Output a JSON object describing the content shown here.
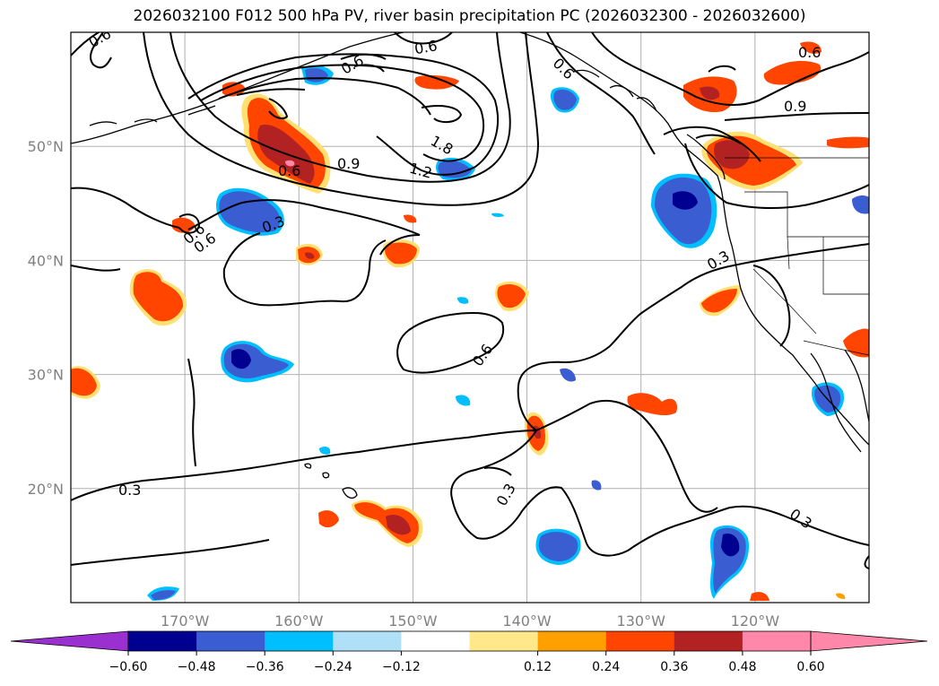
{
  "title": "2026032100 F012 500 hPa PV, river basin precipitation PC (2026032300 - 2026032600)",
  "map": {
    "lon_range": [
      -180,
      -110
    ],
    "lat_range": [
      10,
      60
    ],
    "lon_ticks": [
      -170,
      -160,
      -150,
      -140,
      -130,
      -120
    ],
    "lat_ticks": [
      20,
      30,
      40,
      50
    ],
    "lon_tick_labels": [
      "170°W",
      "160°W",
      "150°W",
      "140°W",
      "130°W",
      "120°W"
    ],
    "lat_tick_labels": [
      "20°N",
      "30°N",
      "40°N",
      "50°N"
    ],
    "grid": true
  },
  "contour_labels": [
    "0.6",
    "0.6",
    "0.6",
    "0.6",
    "0.9",
    "0.9",
    "1.2",
    "1.8",
    "0.6",
    "0.6",
    "0.3",
    "0.3",
    "0.6",
    "0.3",
    "0.3",
    "0.3",
    "0.6",
    "0.6"
  ],
  "colorbar": {
    "ticks": [
      "−0.60",
      "−0.48",
      "−0.36",
      "−0.24",
      "−0.12",
      "0.12",
      "0.24",
      "0.36",
      "0.48",
      "0.60"
    ],
    "colors": {
      "under": "#9b30d0",
      "bins": [
        "#000090",
        "#3a5ed2",
        "#00bfff",
        "#b0e0f8",
        "#ffffff",
        "#ffe88a",
        "#ffa000",
        "#ff4500",
        "#b22222",
        "#ff88aa"
      ],
      "over": "#ff88aa"
    }
  },
  "shading_colors": {
    "pos_light": "#ffe070",
    "pos_mid": "#ff4500",
    "pos_dark": "#b22222",
    "pos_core": "#ff88aa",
    "neg_light": "#00bfff",
    "neg_mid": "#3a5ed2",
    "neg_dark": "#000090"
  }
}
